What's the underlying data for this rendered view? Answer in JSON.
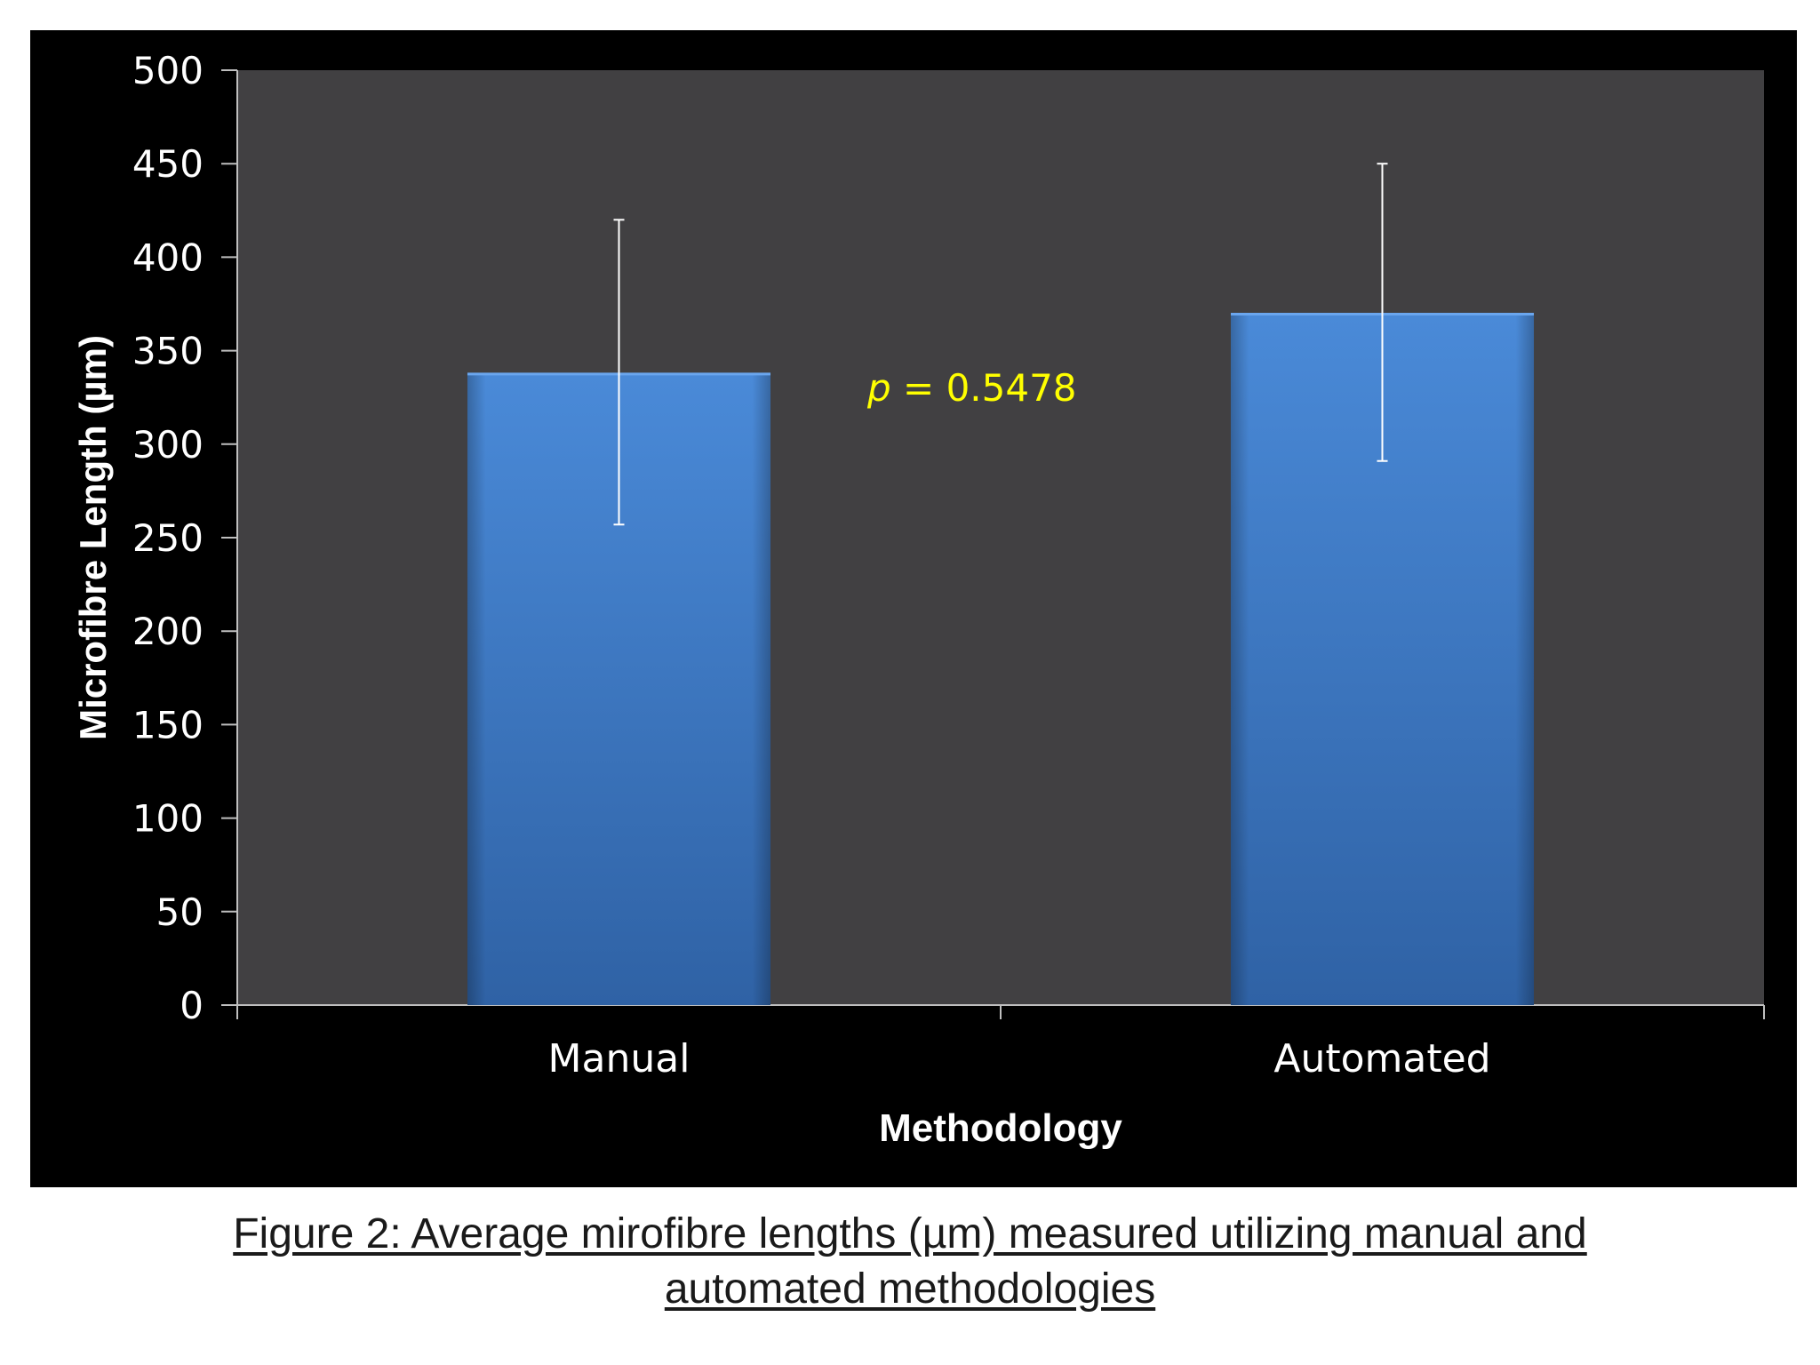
{
  "chart_data": {
    "type": "bar",
    "categories": [
      "Manual",
      "Automated"
    ],
    "values": [
      338,
      370
    ],
    "error_upper": [
      420,
      450
    ],
    "error_lower": [
      257,
      291
    ],
    "xlabel": "Methodology",
    "ylabel": "Microfibre Length (µm)",
    "ylim": [
      0,
      500
    ],
    "yticks": [
      0,
      50,
      100,
      150,
      200,
      250,
      300,
      350,
      400,
      450,
      500
    ],
    "grid": false,
    "annotation": {
      "italic": "p",
      "text": " = 0.5478"
    },
    "colors": {
      "bar": "#3a78c9",
      "plot_bg": "#414042",
      "annotation": "#ffff00",
      "text": "#ffffff"
    }
  },
  "caption": {
    "line1": "Figure 2: Average mirofibre lengths (µm) measured utilizing manual and",
    "line2": "automated methodologies"
  }
}
